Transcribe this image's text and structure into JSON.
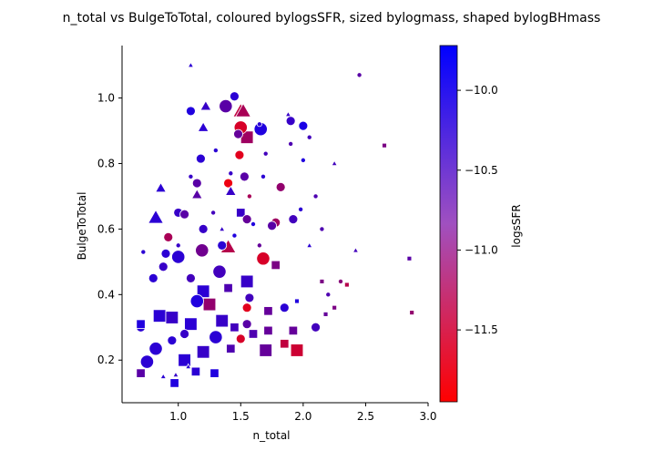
{
  "chart_data": {
    "type": "scatter",
    "title": "n_total vs BulgeToTotal, coloured bylogsSFR, sized bylogmass, shaped bylogBHmass",
    "xlabel": "n_total",
    "ylabel": "BulgeToTotal",
    "colorbar_label": "logsSFR",
    "xlim": [
      0.55,
      3.0
    ],
    "ylim": [
      0.07,
      1.16
    ],
    "xticks": [
      "1.0",
      "1.5",
      "2.0",
      "2.5",
      "3.0"
    ],
    "yticks": [
      "0.2",
      "0.4",
      "0.6",
      "0.8",
      "1.0"
    ],
    "colorbar_ticks": [
      "−10.0",
      "−10.5",
      "−11.0",
      "−11.5"
    ],
    "colorbar_range": [
      -11.95,
      -9.72
    ],
    "colormap": [
      "#ff0000",
      "#0000ff"
    ],
    "marker_edge": "#ffffff",
    "grid": false,
    "points": [
      {
        "x": 1.5,
        "y": 0.96,
        "c": -11.4,
        "s": 3,
        "m": "triangle"
      },
      {
        "x": 1.52,
        "y": 0.96,
        "c": -11.2,
        "s": 3,
        "m": "triangle"
      },
      {
        "x": 1.55,
        "y": 0.88,
        "c": -11.1,
        "s": 3,
        "m": "square"
      },
      {
        "x": 1.38,
        "y": 0.975,
        "c": -10.5,
        "s": 3,
        "m": "circle"
      },
      {
        "x": 1.45,
        "y": 1.005,
        "c": -10.1,
        "s": 2,
        "m": "circle"
      },
      {
        "x": 1.1,
        "y": 1.1,
        "c": -10.1,
        "s": 1,
        "m": "triangle"
      },
      {
        "x": 1.22,
        "y": 0.975,
        "c": -10.2,
        "s": 2,
        "m": "triangle"
      },
      {
        "x": 1.1,
        "y": 0.96,
        "c": -10.0,
        "s": 2,
        "m": "circle"
      },
      {
        "x": 1.5,
        "y": 0.91,
        "c": -11.6,
        "s": 3,
        "m": "circle"
      },
      {
        "x": 1.49,
        "y": 0.826,
        "c": -11.7,
        "s": 2,
        "m": "circle"
      },
      {
        "x": 1.66,
        "y": 0.905,
        "c": -10.0,
        "s": 3,
        "m": "circle"
      },
      {
        "x": 1.48,
        "y": 0.89,
        "c": -10.6,
        "s": 2,
        "m": "circle"
      },
      {
        "x": 1.2,
        "y": 0.91,
        "c": -10.1,
        "s": 2,
        "m": "triangle"
      },
      {
        "x": 1.18,
        "y": 0.815,
        "c": -10.1,
        "s": 2,
        "m": "circle"
      },
      {
        "x": 1.4,
        "y": 0.74,
        "c": -11.8,
        "s": 2,
        "m": "circle"
      },
      {
        "x": 1.82,
        "y": 0.728,
        "c": -11.0,
        "s": 2,
        "m": "circle"
      },
      {
        "x": 1.5,
        "y": 0.65,
        "c": -10.2,
        "s": 2,
        "m": "square"
      },
      {
        "x": 1.53,
        "y": 0.76,
        "c": -10.5,
        "s": 2,
        "m": "circle"
      },
      {
        "x": 1.15,
        "y": 0.74,
        "c": -10.5,
        "s": 2,
        "m": "circle"
      },
      {
        "x": 1.15,
        "y": 0.705,
        "c": -10.5,
        "s": 2,
        "m": "triangle"
      },
      {
        "x": 1.42,
        "y": 0.715,
        "c": -10.2,
        "s": 2,
        "m": "triangle"
      },
      {
        "x": 1.57,
        "y": 0.7,
        "c": -11.2,
        "s": 1,
        "m": "circle"
      },
      {
        "x": 1.68,
        "y": 0.76,
        "c": -10.1,
        "s": 1,
        "m": "circle"
      },
      {
        "x": 1.78,
        "y": 0.62,
        "c": -11.1,
        "s": 2,
        "m": "circle"
      },
      {
        "x": 1.92,
        "y": 0.63,
        "c": -10.3,
        "s": 2,
        "m": "circle"
      },
      {
        "x": 1.75,
        "y": 0.61,
        "c": -10.5,
        "s": 2,
        "m": "circle"
      },
      {
        "x": 1.0,
        "y": 0.65,
        "c": -10.2,
        "s": 2,
        "m": "circle"
      },
      {
        "x": 1.05,
        "y": 0.645,
        "c": -10.5,
        "s": 2,
        "m": "circle"
      },
      {
        "x": 0.82,
        "y": 0.635,
        "c": -10.1,
        "s": 3,
        "m": "triangle"
      },
      {
        "x": 0.86,
        "y": 0.725,
        "c": -10.1,
        "s": 2,
        "m": "triangle"
      },
      {
        "x": 0.92,
        "y": 0.575,
        "c": -11.2,
        "s": 2,
        "m": "circle"
      },
      {
        "x": 1.4,
        "y": 0.545,
        "c": -11.3,
        "s": 3,
        "m": "triangle"
      },
      {
        "x": 1.19,
        "y": 0.535,
        "c": -10.7,
        "s": 3,
        "m": "circle"
      },
      {
        "x": 1.35,
        "y": 0.55,
        "c": -10.1,
        "s": 2,
        "m": "circle"
      },
      {
        "x": 1.55,
        "y": 0.63,
        "c": -10.6,
        "s": 2,
        "m": "circle"
      },
      {
        "x": 1.2,
        "y": 0.6,
        "c": -10.2,
        "s": 2,
        "m": "circle"
      },
      {
        "x": 1.68,
        "y": 0.51,
        "c": -11.6,
        "s": 3,
        "m": "circle"
      },
      {
        "x": 1.78,
        "y": 0.49,
        "c": -10.8,
        "s": 2,
        "m": "square"
      },
      {
        "x": 1.55,
        "y": 0.44,
        "c": -10.2,
        "s": 3,
        "m": "square"
      },
      {
        "x": 1.33,
        "y": 0.47,
        "c": -10.3,
        "s": 3,
        "m": "circle"
      },
      {
        "x": 1.0,
        "y": 0.515,
        "c": -10.1,
        "s": 3,
        "m": "circle"
      },
      {
        "x": 0.9,
        "y": 0.525,
        "c": -10.1,
        "s": 2,
        "m": "circle"
      },
      {
        "x": 0.8,
        "y": 0.45,
        "c": -10.1,
        "s": 2,
        "m": "circle"
      },
      {
        "x": 0.88,
        "y": 0.485,
        "c": -10.2,
        "s": 2,
        "m": "circle"
      },
      {
        "x": 1.1,
        "y": 0.45,
        "c": -10.3,
        "s": 2,
        "m": "circle"
      },
      {
        "x": 1.2,
        "y": 0.41,
        "c": -10.1,
        "s": 3,
        "m": "square"
      },
      {
        "x": 1.25,
        "y": 0.37,
        "c": -11.0,
        "s": 3,
        "m": "square"
      },
      {
        "x": 1.15,
        "y": 0.38,
        "c": -10.0,
        "s": 3,
        "m": "circle"
      },
      {
        "x": 1.4,
        "y": 0.42,
        "c": -10.4,
        "s": 2,
        "m": "square"
      },
      {
        "x": 1.57,
        "y": 0.39,
        "c": -10.3,
        "s": 2,
        "m": "circle"
      },
      {
        "x": 1.55,
        "y": 0.36,
        "c": -11.7,
        "s": 2,
        "m": "circle"
      },
      {
        "x": 1.85,
        "y": 0.36,
        "c": -10.1,
        "s": 2,
        "m": "circle"
      },
      {
        "x": 1.72,
        "y": 0.35,
        "c": -10.6,
        "s": 2,
        "m": "square"
      },
      {
        "x": 1.95,
        "y": 0.38,
        "c": -10.0,
        "s": 1,
        "m": "square"
      },
      {
        "x": 0.85,
        "y": 0.335,
        "c": -10.1,
        "s": 3,
        "m": "square"
      },
      {
        "x": 0.95,
        "y": 0.33,
        "c": -10.2,
        "s": 3,
        "m": "square"
      },
      {
        "x": 0.7,
        "y": 0.3,
        "c": -10.1,
        "s": 2,
        "m": "circle"
      },
      {
        "x": 0.7,
        "y": 0.31,
        "c": -10.0,
        "s": 2,
        "m": "square"
      },
      {
        "x": 1.1,
        "y": 0.31,
        "c": -10.1,
        "s": 3,
        "m": "square"
      },
      {
        "x": 1.35,
        "y": 0.32,
        "c": -10.2,
        "s": 3,
        "m": "square"
      },
      {
        "x": 1.45,
        "y": 0.3,
        "c": -10.3,
        "s": 2,
        "m": "square"
      },
      {
        "x": 1.55,
        "y": 0.31,
        "c": -10.5,
        "s": 2,
        "m": "circle"
      },
      {
        "x": 1.6,
        "y": 0.28,
        "c": -10.4,
        "s": 2,
        "m": "square"
      },
      {
        "x": 1.72,
        "y": 0.29,
        "c": -10.6,
        "s": 2,
        "m": "square"
      },
      {
        "x": 1.5,
        "y": 0.265,
        "c": -11.6,
        "s": 2,
        "m": "circle"
      },
      {
        "x": 1.7,
        "y": 0.23,
        "c": -10.6,
        "s": 3,
        "m": "square"
      },
      {
        "x": 1.85,
        "y": 0.25,
        "c": -11.4,
        "s": 2,
        "m": "square"
      },
      {
        "x": 1.95,
        "y": 0.23,
        "c": -11.5,
        "s": 3,
        "m": "square"
      },
      {
        "x": 1.92,
        "y": 0.29,
        "c": -10.6,
        "s": 2,
        "m": "square"
      },
      {
        "x": 2.1,
        "y": 0.3,
        "c": -10.3,
        "s": 2,
        "m": "circle"
      },
      {
        "x": 1.3,
        "y": 0.27,
        "c": -10.1,
        "s": 3,
        "m": "circle"
      },
      {
        "x": 1.2,
        "y": 0.225,
        "c": -10.2,
        "s": 3,
        "m": "square"
      },
      {
        "x": 1.05,
        "y": 0.2,
        "c": -10.1,
        "s": 3,
        "m": "square"
      },
      {
        "x": 0.82,
        "y": 0.235,
        "c": -10.1,
        "s": 3,
        "m": "circle"
      },
      {
        "x": 0.75,
        "y": 0.195,
        "c": -10.1,
        "s": 3,
        "m": "circle"
      },
      {
        "x": 0.7,
        "y": 0.16,
        "c": -10.5,
        "s": 2,
        "m": "square"
      },
      {
        "x": 0.97,
        "y": 0.13,
        "c": -10.0,
        "s": 2,
        "m": "square"
      },
      {
        "x": 1.14,
        "y": 0.165,
        "c": -10.1,
        "s": 2,
        "m": "square"
      },
      {
        "x": 1.29,
        "y": 0.16,
        "c": -10.0,
        "s": 2,
        "m": "square"
      },
      {
        "x": 1.42,
        "y": 0.235,
        "c": -10.4,
        "s": 2,
        "m": "square"
      },
      {
        "x": 1.05,
        "y": 0.28,
        "c": -10.2,
        "s": 2,
        "m": "circle"
      },
      {
        "x": 0.95,
        "y": 0.26,
        "c": -10.1,
        "s": 2,
        "m": "circle"
      },
      {
        "x": 1.65,
        "y": 0.92,
        "c": -10.1,
        "s": 1,
        "m": "circle"
      },
      {
        "x": 1.9,
        "y": 0.93,
        "c": -10.2,
        "s": 2,
        "m": "circle"
      },
      {
        "x": 2.0,
        "y": 0.915,
        "c": -9.95,
        "s": 2,
        "m": "circle"
      },
      {
        "x": 1.88,
        "y": 0.95,
        "c": -10.2,
        "s": 1,
        "m": "triangle"
      },
      {
        "x": 2.05,
        "y": 0.88,
        "c": -10.3,
        "s": 1,
        "m": "circle"
      },
      {
        "x": 1.9,
        "y": 0.86,
        "c": -10.4,
        "s": 1,
        "m": "circle"
      },
      {
        "x": 2.0,
        "y": 0.81,
        "c": -10.0,
        "s": 1,
        "m": "circle"
      },
      {
        "x": 1.7,
        "y": 0.83,
        "c": -10.3,
        "s": 1,
        "m": "circle"
      },
      {
        "x": 2.1,
        "y": 0.7,
        "c": -10.4,
        "s": 1,
        "m": "circle"
      },
      {
        "x": 1.98,
        "y": 0.66,
        "c": -10.1,
        "s": 1,
        "m": "circle"
      },
      {
        "x": 2.05,
        "y": 0.55,
        "c": -10.1,
        "s": 1,
        "m": "triangle"
      },
      {
        "x": 2.15,
        "y": 0.44,
        "c": -10.8,
        "s": 1,
        "m": "square"
      },
      {
        "x": 2.2,
        "y": 0.4,
        "c": -10.4,
        "s": 1,
        "m": "circle"
      },
      {
        "x": 2.25,
        "y": 0.36,
        "c": -10.8,
        "s": 1,
        "m": "square"
      },
      {
        "x": 2.18,
        "y": 0.34,
        "c": -10.6,
        "s": 1,
        "m": "square"
      },
      {
        "x": 2.3,
        "y": 0.44,
        "c": -10.9,
        "s": 1,
        "m": "circle"
      },
      {
        "x": 2.35,
        "y": 0.43,
        "c": -11.3,
        "s": 1,
        "m": "square"
      },
      {
        "x": 2.15,
        "y": 0.6,
        "c": -10.4,
        "s": 1,
        "m": "circle"
      },
      {
        "x": 2.25,
        "y": 0.8,
        "c": -10.3,
        "s": 1,
        "m": "triangle"
      },
      {
        "x": 2.45,
        "y": 1.07,
        "c": -10.5,
        "s": 1,
        "m": "circle"
      },
      {
        "x": 2.65,
        "y": 0.855,
        "c": -10.8,
        "s": 1,
        "m": "square"
      },
      {
        "x": 2.85,
        "y": 0.51,
        "c": -10.5,
        "s": 1,
        "m": "square"
      },
      {
        "x": 2.87,
        "y": 0.345,
        "c": -11.0,
        "s": 1,
        "m": "square"
      },
      {
        "x": 2.42,
        "y": 0.535,
        "c": -10.3,
        "s": 1,
        "m": "triangle"
      },
      {
        "x": 1.3,
        "y": 0.84,
        "c": -10.1,
        "s": 1,
        "m": "circle"
      },
      {
        "x": 1.42,
        "y": 0.77,
        "c": -10.2,
        "s": 1,
        "m": "circle"
      },
      {
        "x": 1.1,
        "y": 0.76,
        "c": -10.2,
        "s": 1,
        "m": "circle"
      },
      {
        "x": 1.28,
        "y": 0.65,
        "c": -10.3,
        "s": 1,
        "m": "circle"
      },
      {
        "x": 1.6,
        "y": 0.615,
        "c": -10.0,
        "s": 1,
        "m": "circle"
      },
      {
        "x": 1.65,
        "y": 0.55,
        "c": -10.6,
        "s": 1,
        "m": "circle"
      },
      {
        "x": 1.0,
        "y": 0.55,
        "c": -10.2,
        "s": 1,
        "m": "circle"
      },
      {
        "x": 0.72,
        "y": 0.53,
        "c": -10.1,
        "s": 1,
        "m": "circle"
      },
      {
        "x": 1.45,
        "y": 0.58,
        "c": -10.0,
        "s": 1,
        "m": "circle"
      },
      {
        "x": 1.35,
        "y": 0.6,
        "c": -10.2,
        "s": 1,
        "m": "triangle"
      },
      {
        "x": 0.88,
        "y": 0.15,
        "c": -10.1,
        "s": 1,
        "m": "triangle"
      },
      {
        "x": 0.98,
        "y": 0.155,
        "c": -10.2,
        "s": 1,
        "m": "triangle"
      },
      {
        "x": 1.08,
        "y": 0.18,
        "c": -10.1,
        "s": 1,
        "m": "triangle"
      }
    ]
  }
}
